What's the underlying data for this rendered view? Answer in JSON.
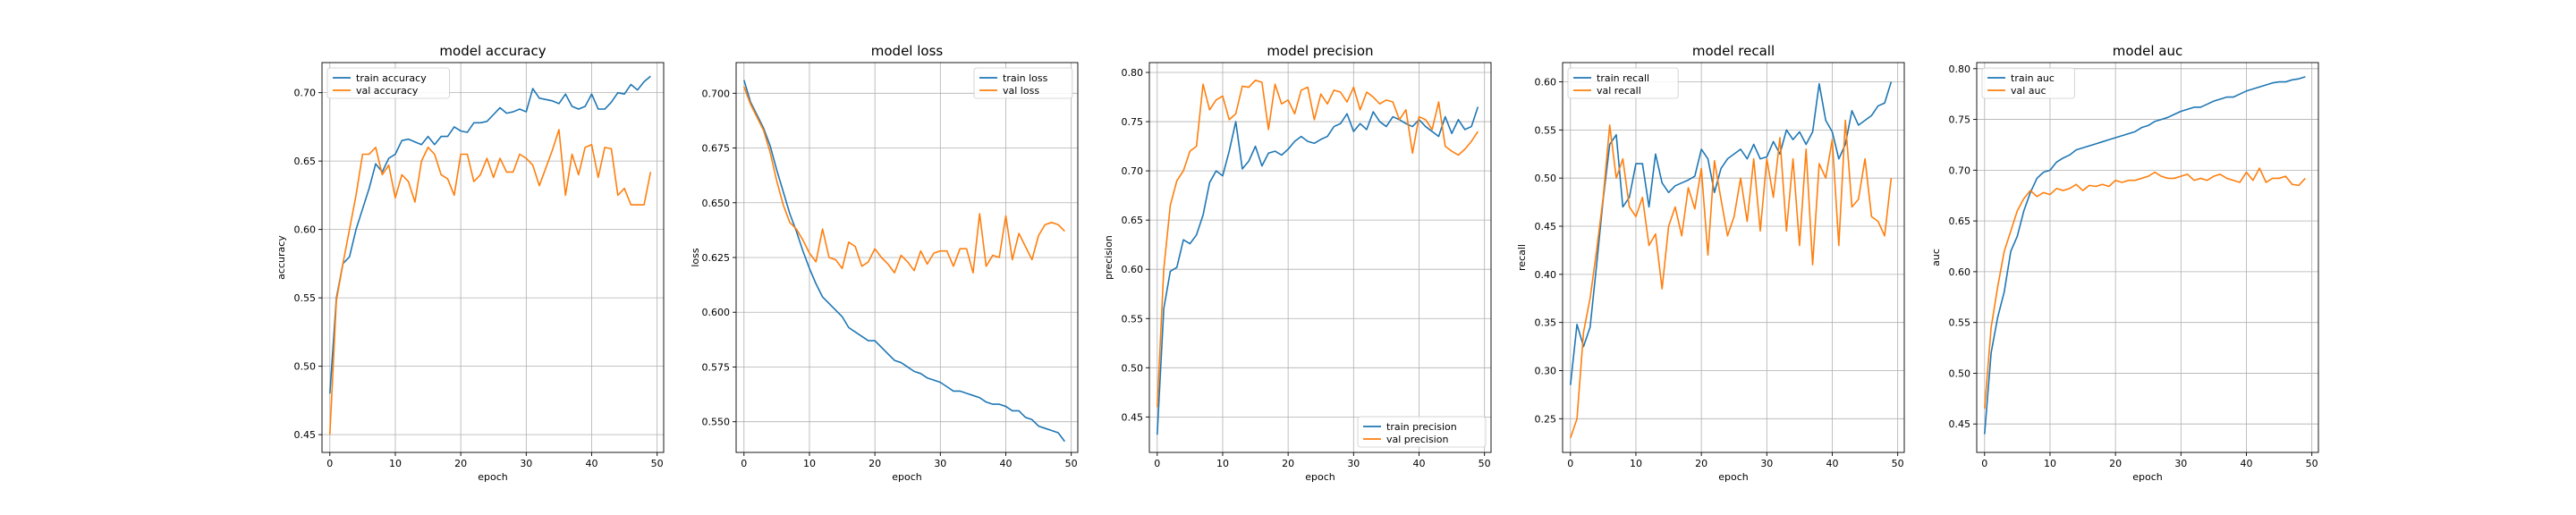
{
  "chart_data": [
    {
      "type": "line",
      "title": "model accuracy",
      "xlabel": "epoch",
      "ylabel": "accuracy",
      "xlim": [
        -1.2,
        51
      ],
      "ylim": [
        0.437,
        0.722
      ],
      "xticks": [
        0,
        10,
        20,
        30,
        40,
        50
      ],
      "yticks": [
        0.45,
        0.5,
        0.55,
        0.6,
        0.65,
        0.7
      ],
      "tick_labels_x": [
        "0",
        "10",
        "20",
        "30",
        "40",
        "50"
      ],
      "tick_labels_y": [
        "0.45",
        "0.50",
        "0.55",
        "0.60",
        "0.65",
        "0.70"
      ],
      "grid": true,
      "legend_position": "upper-left",
      "series": [
        {
          "name": "train accuracy",
          "color": "#1f77b4",
          "values": [
            0.48,
            0.55,
            0.575,
            0.58,
            0.6,
            0.615,
            0.63,
            0.648,
            0.642,
            0.652,
            0.655,
            0.665,
            0.666,
            0.664,
            0.662,
            0.668,
            0.662,
            0.668,
            0.668,
            0.675,
            0.672,
            0.671,
            0.678,
            0.678,
            0.679,
            0.684,
            0.689,
            0.685,
            0.686,
            0.688,
            0.686,
            0.703,
            0.696,
            0.695,
            0.694,
            0.692,
            0.699,
            0.69,
            0.688,
            0.69,
            0.699,
            0.688,
            0.688,
            0.693,
            0.7,
            0.699,
            0.706,
            0.702,
            0.708,
            0.712
          ]
        },
        {
          "name": "val accuracy",
          "color": "#ff7f0e",
          "values": [
            0.45,
            0.548,
            0.575,
            0.6,
            0.625,
            0.655,
            0.655,
            0.66,
            0.64,
            0.647,
            0.623,
            0.64,
            0.635,
            0.62,
            0.65,
            0.66,
            0.655,
            0.64,
            0.637,
            0.625,
            0.655,
            0.655,
            0.635,
            0.64,
            0.652,
            0.638,
            0.652,
            0.642,
            0.642,
            0.655,
            0.652,
            0.647,
            0.632,
            0.645,
            0.658,
            0.673,
            0.625,
            0.655,
            0.64,
            0.66,
            0.662,
            0.638,
            0.66,
            0.659,
            0.625,
            0.63,
            0.618,
            0.618,
            0.618,
            0.642
          ]
        }
      ]
    },
    {
      "type": "line",
      "title": "model loss",
      "xlabel": "epoch",
      "ylabel": "loss",
      "xlim": [
        -1.2,
        51
      ],
      "ylim": [
        0.536,
        0.714
      ],
      "xticks": [
        0,
        10,
        20,
        30,
        40,
        50
      ],
      "yticks": [
        0.55,
        0.575,
        0.6,
        0.625,
        0.65,
        0.675,
        0.7
      ],
      "tick_labels_x": [
        "0",
        "10",
        "20",
        "30",
        "40",
        "50"
      ],
      "tick_labels_y": [
        "0.550",
        "0.575",
        "0.600",
        "0.625",
        "0.650",
        "0.675",
        "0.700"
      ],
      "grid": true,
      "legend_position": "upper-right",
      "series": [
        {
          "name": "train loss",
          "color": "#1f77b4",
          "values": [
            0.706,
            0.696,
            0.69,
            0.684,
            0.676,
            0.665,
            0.655,
            0.645,
            0.637,
            0.628,
            0.62,
            0.613,
            0.607,
            0.604,
            0.601,
            0.598,
            0.593,
            0.591,
            0.589,
            0.587,
            0.587,
            0.584,
            0.581,
            0.578,
            0.577,
            0.575,
            0.573,
            0.572,
            0.57,
            0.569,
            0.568,
            0.566,
            0.564,
            0.564,
            0.563,
            0.562,
            0.561,
            0.559,
            0.558,
            0.558,
            0.557,
            0.555,
            0.555,
            0.552,
            0.551,
            0.548,
            0.547,
            0.546,
            0.545,
            0.541
          ]
        },
        {
          "name": "val loss",
          "color": "#ff7f0e",
          "values": [
            0.703,
            0.695,
            0.689,
            0.683,
            0.673,
            0.66,
            0.649,
            0.641,
            0.638,
            0.633,
            0.627,
            0.623,
            0.638,
            0.625,
            0.624,
            0.62,
            0.632,
            0.63,
            0.621,
            0.623,
            0.629,
            0.625,
            0.622,
            0.618,
            0.626,
            0.623,
            0.619,
            0.628,
            0.622,
            0.627,
            0.628,
            0.628,
            0.621,
            0.629,
            0.629,
            0.618,
            0.645,
            0.621,
            0.626,
            0.625,
            0.644,
            0.624,
            0.636,
            0.63,
            0.624,
            0.635,
            0.64,
            0.641,
            0.64,
            0.637
          ]
        }
      ]
    },
    {
      "type": "line",
      "title": "model precision",
      "xlabel": "epoch",
      "ylabel": "precision",
      "xlim": [
        -1.2,
        51
      ],
      "ylim": [
        0.414,
        0.81
      ],
      "xticks": [
        0,
        10,
        20,
        30,
        40,
        50
      ],
      "yticks": [
        0.45,
        0.5,
        0.55,
        0.6,
        0.65,
        0.7,
        0.75,
        0.8
      ],
      "tick_labels_x": [
        "0",
        "10",
        "20",
        "30",
        "40",
        "50"
      ],
      "tick_labels_y": [
        "0.45",
        "0.50",
        "0.55",
        "0.60",
        "0.65",
        "0.70",
        "0.75",
        "0.80"
      ],
      "grid": true,
      "legend_position": "lower-right",
      "series": [
        {
          "name": "train precision",
          "color": "#1f77b4",
          "values": [
            0.432,
            0.56,
            0.598,
            0.602,
            0.63,
            0.626,
            0.635,
            0.655,
            0.688,
            0.7,
            0.695,
            0.72,
            0.75,
            0.702,
            0.71,
            0.725,
            0.705,
            0.718,
            0.72,
            0.716,
            0.722,
            0.73,
            0.735,
            0.73,
            0.728,
            0.732,
            0.735,
            0.745,
            0.748,
            0.758,
            0.74,
            0.748,
            0.742,
            0.76,
            0.75,
            0.745,
            0.755,
            0.752,
            0.748,
            0.745,
            0.752,
            0.745,
            0.74,
            0.735,
            0.755,
            0.738,
            0.752,
            0.742,
            0.745,
            0.765
          ]
        },
        {
          "name": "val precision",
          "color": "#ff7f0e",
          "values": [
            0.46,
            0.6,
            0.665,
            0.69,
            0.7,
            0.72,
            0.725,
            0.788,
            0.762,
            0.772,
            0.776,
            0.752,
            0.758,
            0.786,
            0.785,
            0.792,
            0.79,
            0.742,
            0.788,
            0.768,
            0.772,
            0.758,
            0.782,
            0.785,
            0.752,
            0.778,
            0.768,
            0.782,
            0.78,
            0.77,
            0.785,
            0.762,
            0.78,
            0.775,
            0.768,
            0.772,
            0.77,
            0.752,
            0.762,
            0.718,
            0.755,
            0.752,
            0.742,
            0.77,
            0.725,
            0.72,
            0.716,
            0.722,
            0.73,
            0.74
          ]
        }
      ]
    },
    {
      "type": "line",
      "title": "model recall",
      "xlabel": "epoch",
      "ylabel": "recall",
      "xlim": [
        -1.2,
        51
      ],
      "ylim": [
        0.215,
        0.62
      ],
      "xticks": [
        0,
        10,
        20,
        30,
        40,
        50
      ],
      "yticks": [
        0.25,
        0.3,
        0.35,
        0.4,
        0.45,
        0.5,
        0.55,
        0.6
      ],
      "tick_labels_x": [
        "0",
        "10",
        "20",
        "30",
        "40",
        "50"
      ],
      "tick_labels_y": [
        "0.25",
        "0.30",
        "0.35",
        "0.40",
        "0.45",
        "0.50",
        "0.55",
        "0.60"
      ],
      "grid": true,
      "legend_position": "upper-left",
      "series": [
        {
          "name": "train recall",
          "color": "#1f77b4",
          "values": [
            0.285,
            0.348,
            0.325,
            0.345,
            0.41,
            0.478,
            0.535,
            0.545,
            0.47,
            0.48,
            0.515,
            0.515,
            0.47,
            0.525,
            0.495,
            0.485,
            0.492,
            0.495,
            0.498,
            0.502,
            0.53,
            0.52,
            0.485,
            0.51,
            0.52,
            0.525,
            0.53,
            0.52,
            0.535,
            0.52,
            0.522,
            0.538,
            0.525,
            0.55,
            0.54,
            0.548,
            0.535,
            0.548,
            0.598,
            0.56,
            0.548,
            0.52,
            0.535,
            0.57,
            0.555,
            0.56,
            0.565,
            0.575,
            0.578,
            0.6
          ]
        },
        {
          "name": "val recall",
          "color": "#ff7f0e",
          "values": [
            0.23,
            0.25,
            0.34,
            0.375,
            0.425,
            0.48,
            0.555,
            0.5,
            0.52,
            0.47,
            0.46,
            0.48,
            0.43,
            0.442,
            0.385,
            0.45,
            0.47,
            0.44,
            0.49,
            0.468,
            0.51,
            0.42,
            0.518,
            0.478,
            0.44,
            0.46,
            0.5,
            0.455,
            0.52,
            0.445,
            0.52,
            0.48,
            0.542,
            0.445,
            0.52,
            0.43,
            0.53,
            0.41,
            0.515,
            0.5,
            0.54,
            0.43,
            0.56,
            0.47,
            0.478,
            0.52,
            0.46,
            0.455,
            0.44,
            0.5
          ]
        }
      ]
    },
    {
      "type": "line",
      "title": "model auc",
      "xlabel": "epoch",
      "ylabel": "auc",
      "xlim": [
        -1.2,
        51
      ],
      "ylim": [
        0.422,
        0.806
      ],
      "xticks": [
        0,
        10,
        20,
        30,
        40,
        50
      ],
      "yticks": [
        0.45,
        0.5,
        0.55,
        0.6,
        0.65,
        0.7,
        0.75,
        0.8
      ],
      "tick_labels_x": [
        "0",
        "10",
        "20",
        "30",
        "40",
        "50"
      ],
      "tick_labels_y": [
        "0.45",
        "0.50",
        "0.55",
        "0.60",
        "0.65",
        "0.70",
        "0.75",
        "0.80"
      ],
      "grid": true,
      "legend_position": "upper-left",
      "series": [
        {
          "name": "train auc",
          "color": "#1f77b4",
          "values": [
            0.44,
            0.52,
            0.555,
            0.58,
            0.62,
            0.635,
            0.66,
            0.678,
            0.692,
            0.698,
            0.7,
            0.708,
            0.712,
            0.715,
            0.72,
            0.722,
            0.724,
            0.726,
            0.728,
            0.73,
            0.732,
            0.734,
            0.736,
            0.738,
            0.742,
            0.744,
            0.748,
            0.75,
            0.752,
            0.755,
            0.758,
            0.76,
            0.762,
            0.762,
            0.765,
            0.768,
            0.77,
            0.772,
            0.772,
            0.775,
            0.778,
            0.78,
            0.782,
            0.784,
            0.786,
            0.787,
            0.787,
            0.789,
            0.79,
            0.792
          ]
        },
        {
          "name": "val auc",
          "color": "#ff7f0e",
          "values": [
            0.465,
            0.545,
            0.585,
            0.62,
            0.64,
            0.66,
            0.672,
            0.68,
            0.674,
            0.678,
            0.676,
            0.682,
            0.68,
            0.682,
            0.686,
            0.68,
            0.685,
            0.684,
            0.686,
            0.684,
            0.69,
            0.688,
            0.69,
            0.69,
            0.692,
            0.694,
            0.698,
            0.694,
            0.692,
            0.692,
            0.694,
            0.696,
            0.69,
            0.692,
            0.69,
            0.694,
            0.696,
            0.692,
            0.69,
            0.688,
            0.698,
            0.69,
            0.702,
            0.688,
            0.692,
            0.692,
            0.694,
            0.686,
            0.685,
            0.692
          ]
        }
      ]
    }
  ]
}
